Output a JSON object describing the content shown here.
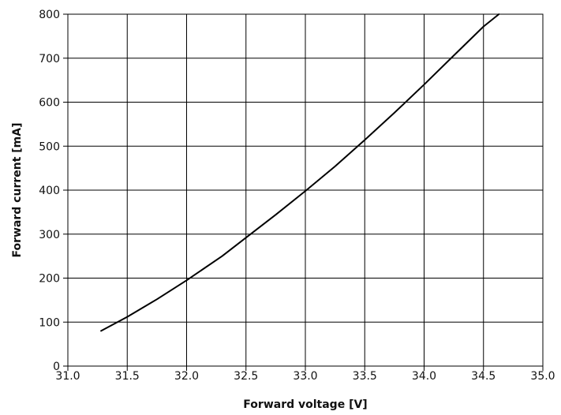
{
  "chart_data": {
    "type": "line",
    "xlabel": "Forward voltage [V]",
    "ylabel": "Forward current [mA]",
    "xlim": [
      31.0,
      35.0
    ],
    "ylim": [
      0,
      800
    ],
    "x_ticks": [
      "31.0",
      "31.5",
      "32.0",
      "32.5",
      "33.0",
      "33.5",
      "34.0",
      "34.5",
      "35.0"
    ],
    "y_ticks": [
      "0",
      "100",
      "200",
      "300",
      "400",
      "500",
      "600",
      "700",
      "800"
    ],
    "grid": true,
    "series": [
      {
        "x": [
          31.28,
          31.5,
          31.75,
          32.0,
          32.3,
          32.5,
          32.75,
          33.0,
          33.25,
          33.5,
          33.75,
          34.0,
          34.25,
          34.5,
          34.63
        ],
        "y": [
          80,
          112,
          152,
          195,
          250,
          292,
          344,
          398,
          454,
          514,
          576,
          640,
          706,
          772,
          800
        ]
      }
    ]
  }
}
